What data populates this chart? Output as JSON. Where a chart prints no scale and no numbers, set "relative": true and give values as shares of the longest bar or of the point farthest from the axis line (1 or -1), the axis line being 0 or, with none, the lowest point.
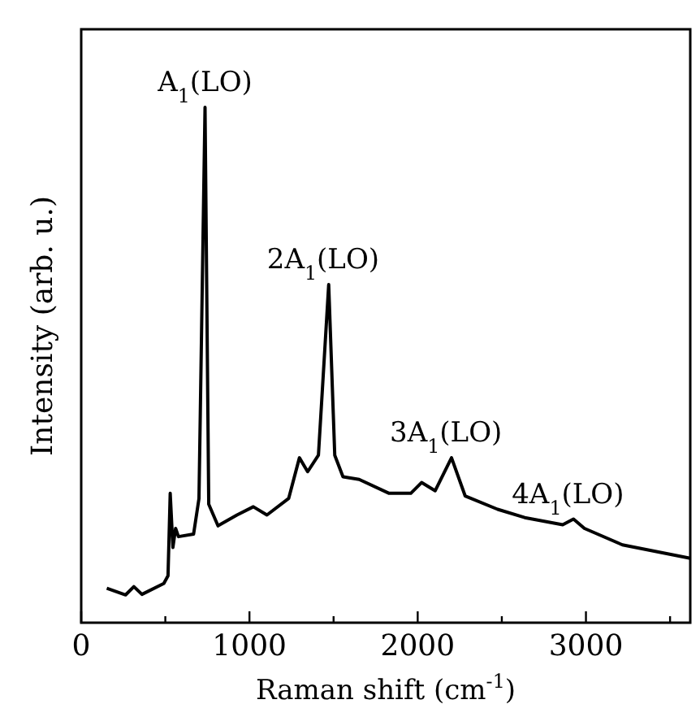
{
  "chart_data": {
    "type": "line",
    "relative": true,
    "xlabel": "Raman shift (cm$^{-1}$)",
    "ylabel": "Intensity (arb. u.)",
    "xlim": [
      0,
      3620
    ],
    "xticks": [
      0,
      {
        "value": 500,
        "label": null
      },
      1000,
      {
        "value": 1500,
        "label": null
      },
      2000,
      {
        "value": 2500,
        "label": null
      },
      3000,
      {
        "value": 3500,
        "label": null
      }
    ],
    "grid": false,
    "line_style": "solid",
    "series": [
      {
        "color": "#000000",
        "x": [
          152,
          264,
          313,
          361,
          491,
          516,
          529,
          545,
          561,
          578,
          668,
          700,
          736,
          758,
          813,
          926,
          1023,
          1104,
          1233,
          1297,
          1346,
          1410,
          1471,
          1507,
          1556,
          1652,
          1830,
          1959,
          2023,
          2104,
          2201,
          2282,
          2475,
          2636,
          2862,
          2926,
          2991,
          3217,
          3620
        ],
        "values": [
          0.067,
          0.054,
          0.07,
          0.055,
          0.076,
          0.091,
          0.251,
          0.146,
          0.183,
          0.167,
          0.172,
          0.241,
          1.0,
          0.23,
          0.188,
          0.209,
          0.225,
          0.209,
          0.241,
          0.32,
          0.293,
          0.325,
          0.656,
          0.325,
          0.283,
          0.278,
          0.251,
          0.251,
          0.272,
          0.256,
          0.32,
          0.246,
          0.22,
          0.204,
          0.19,
          0.201,
          0.183,
          0.151,
          0.125
        ]
      }
    ],
    "annotations": [
      {
        "text": "A$_{1}$(LO)",
        "x": 736,
        "y": 1.0
      },
      {
        "text": "2A$_{1}$(LO)",
        "x": 1471,
        "y": 0.656
      },
      {
        "text": "3A$_{1}$(LO)",
        "x": 2201,
        "y": 0.32
      },
      {
        "text": "4A$_{1}$(LO)",
        "x": 2926,
        "y": 0.201
      }
    ]
  }
}
